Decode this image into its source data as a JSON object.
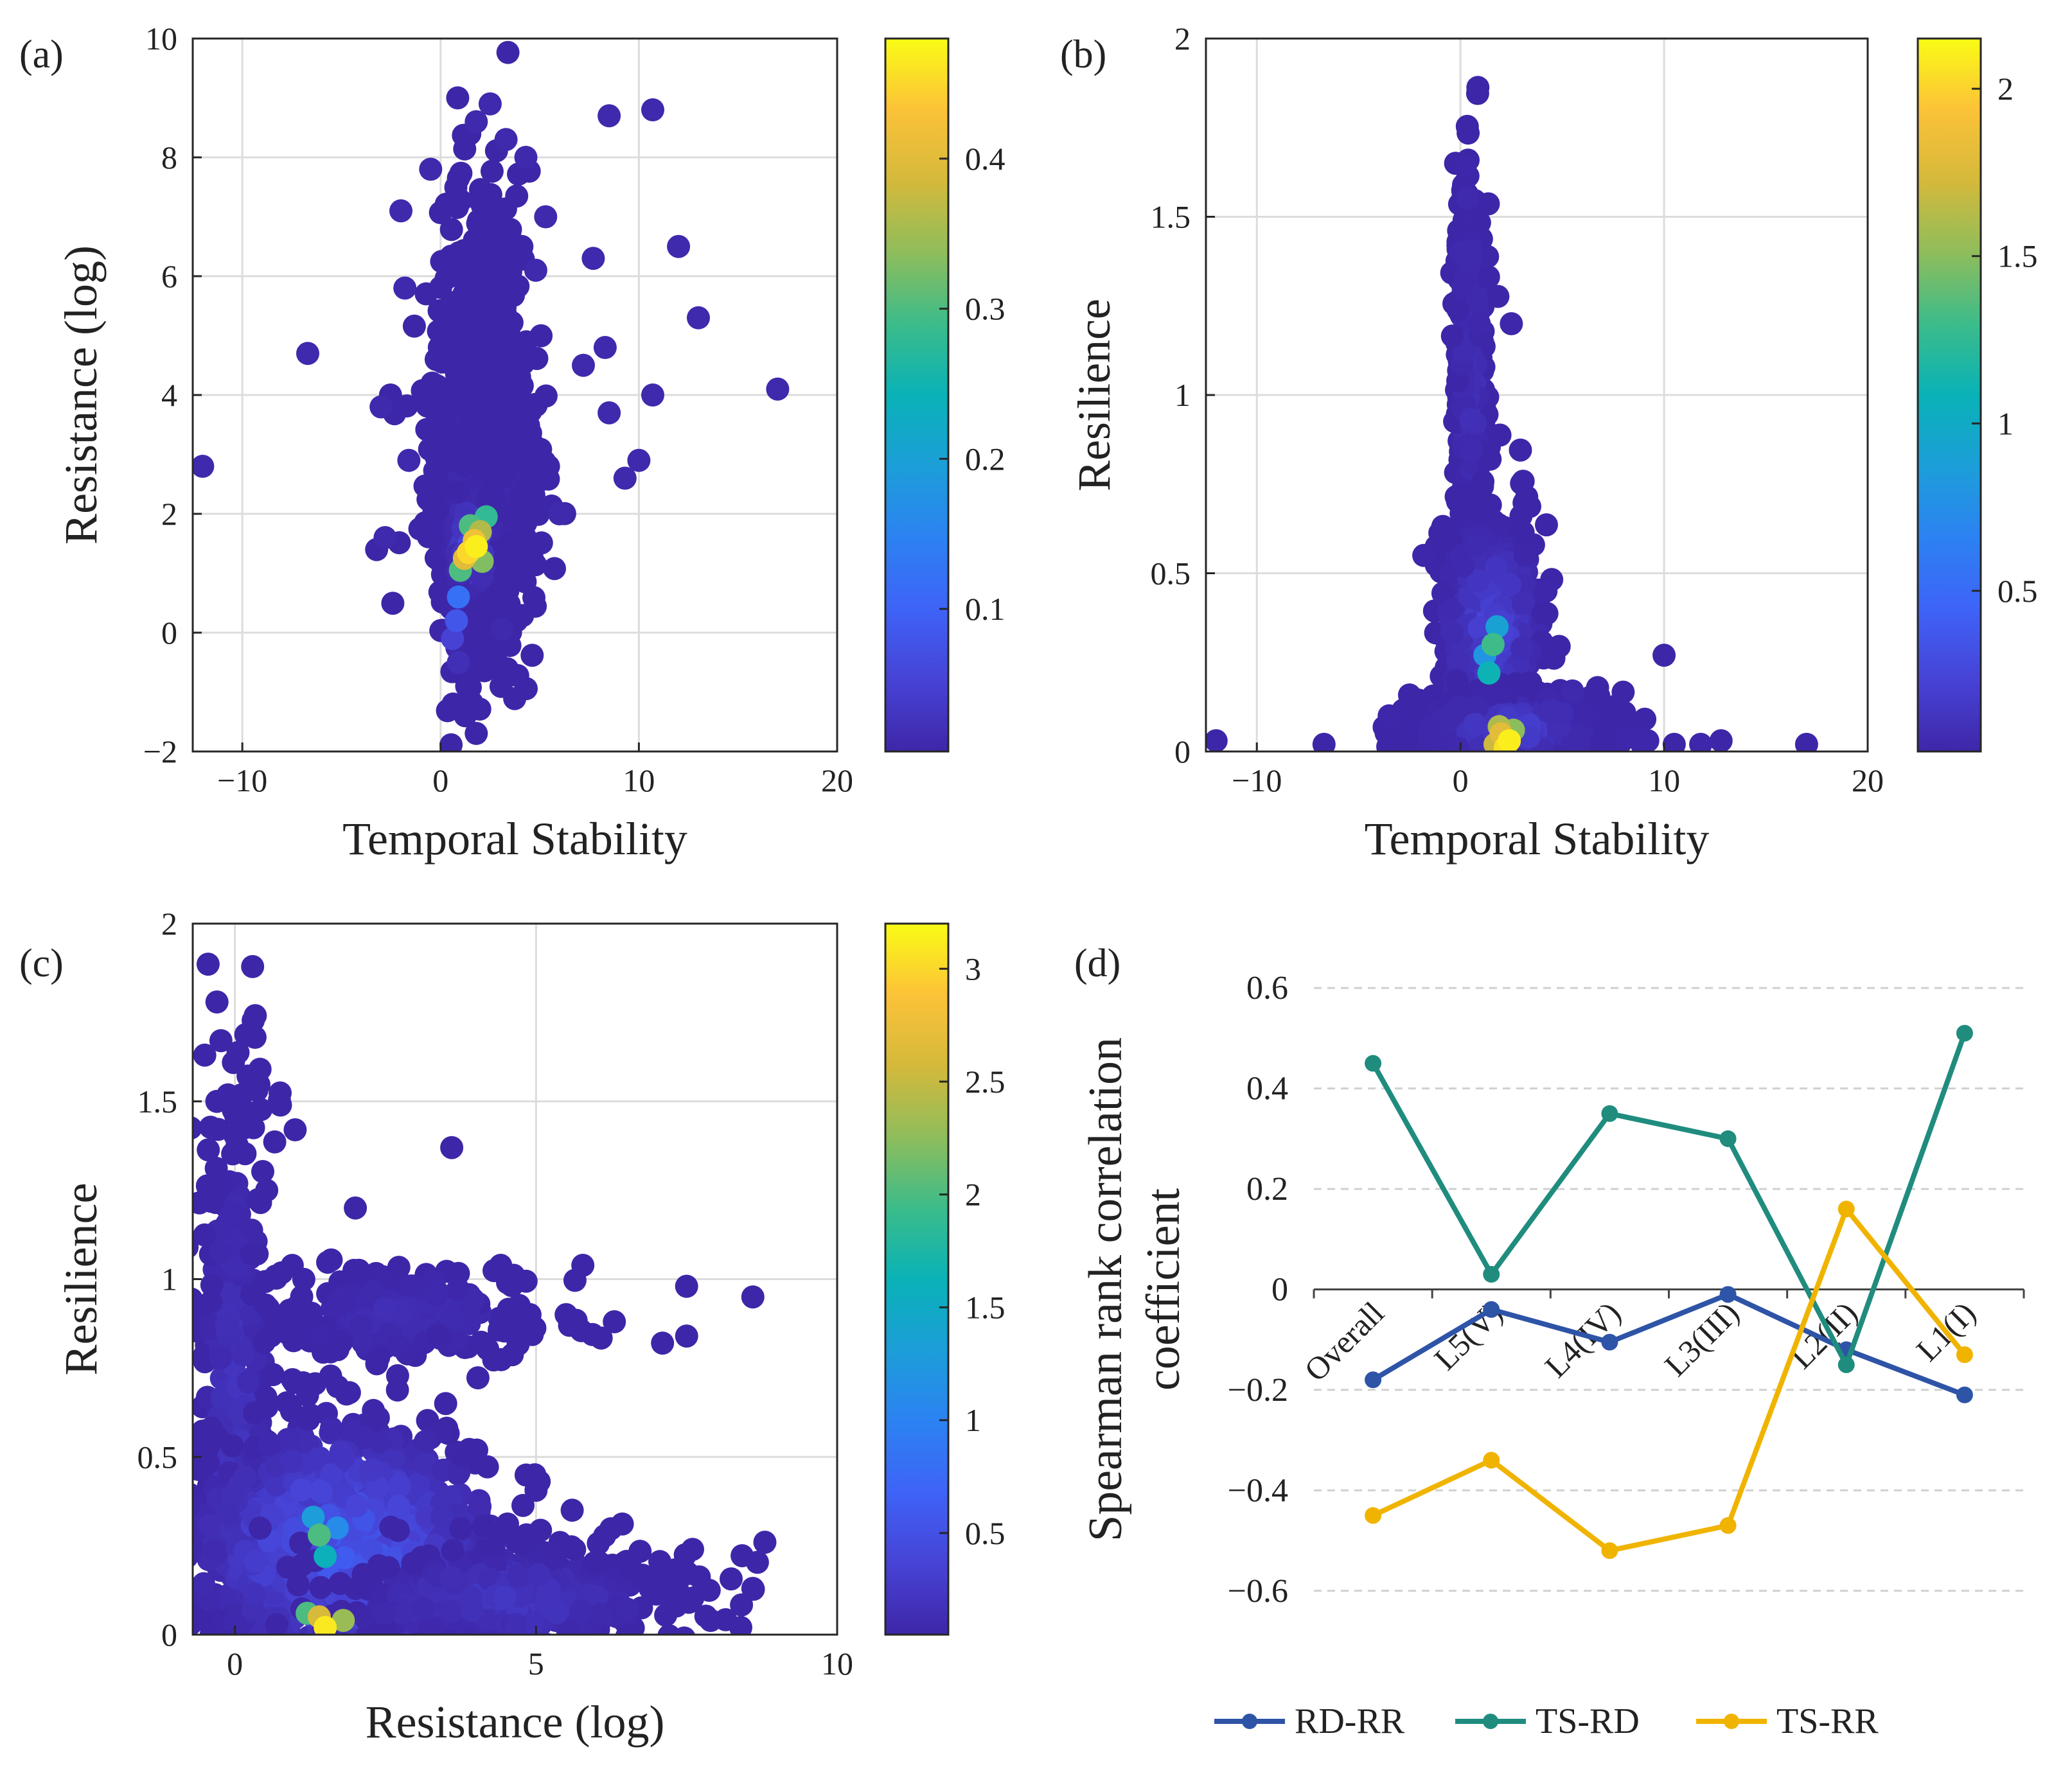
{
  "figure": {
    "panels": [
      "(a)",
      "(b)",
      "(c)",
      "(d)"
    ]
  },
  "colors": {
    "colormap": [
      "#3e26a8",
      "#4743d6",
      "#3e63f7",
      "#2c82f2",
      "#1c9ed8",
      "#09b2b7",
      "#3cbc8a",
      "#8fbd5b",
      "#d4b93b",
      "#fcc238",
      "#f9fb15"
    ],
    "grid": "#dcdcdc",
    "axis": "#262626",
    "RD-RR": "#2e54a7",
    "TS-RD": "#1f8c7e",
    "TS-RR": "#f0b400"
  },
  "chart_data": [
    {
      "panel": "(a)",
      "type": "scatter",
      "xlabel": "Temporal Stability",
      "ylabel": "Resistance (log)",
      "xlim": [
        -12.5,
        20
      ],
      "ylim": [
        -2,
        10
      ],
      "xticks": [
        "-10",
        "0",
        "10",
        "20"
      ],
      "xtick_values": [
        -10,
        0,
        10,
        20
      ],
      "yticks": [
        "-2",
        "0",
        "2",
        "4",
        "6",
        "8",
        "10"
      ],
      "ytick_values": [
        -2,
        0,
        2,
        4,
        6,
        8,
        10
      ],
      "grid": true,
      "colorbar": {
        "ticks": [
          "0.1",
          "0.2",
          "0.3",
          "0.4"
        ],
        "tick_values": [
          0.1,
          0.2,
          0.3,
          0.4
        ],
        "range": [
          0.005,
          0.48
        ]
      },
      "clusters": [
        {
          "x": 2.0,
          "y": 2.5,
          "sx": 1.3,
          "sy": 1.3,
          "n": 950,
          "dens": 0.03
        },
        {
          "x": 2.2,
          "y": 5.0,
          "sx": 0.9,
          "sy": 1.4,
          "n": 260,
          "dens": 0.01
        },
        {
          "x": 1.6,
          "y": 1.5,
          "sx": 0.5,
          "sy": 0.45,
          "n": 120,
          "dens": 0.15
        }
      ],
      "points": [
        [
          -12,
          2.8,
          0.01
        ],
        [
          -6.7,
          4.7,
          0.01
        ],
        [
          17,
          4.1,
          0.01
        ],
        [
          12,
          6.5,
          0.01
        ],
        [
          13,
          5.3,
          0.01
        ],
        [
          8.5,
          8.7,
          0.01
        ],
        [
          10.7,
          8.8,
          0.01
        ],
        [
          2.5,
          8.9,
          0.01
        ],
        [
          1.8,
          8.6,
          0.01
        ],
        [
          3.3,
          8.3,
          0.01
        ],
        [
          4.3,
          8.0,
          0.01
        ],
        [
          -0.5,
          7.8,
          0.01
        ],
        [
          -2,
          7.1,
          0.01
        ],
        [
          -1.8,
          5.8,
          0.01
        ],
        [
          -3,
          3.8,
          0.01
        ],
        [
          7.7,
          6.3,
          0.01
        ],
        [
          10.7,
          4.0,
          0.01
        ],
        [
          8.5,
          3.7,
          0.01
        ],
        [
          10,
          2.9,
          0.01
        ],
        [
          9.3,
          2.6,
          0.01
        ],
        [
          8.3,
          4.8,
          0.01
        ],
        [
          7.2,
          4.5,
          0.01
        ],
        [
          3.1,
          0.05,
          0.01
        ],
        [
          0.9,
          -0.5,
          0.02
        ],
        [
          0.6,
          -0.1,
          0.05
        ],
        [
          -2.8,
          1.6,
          0.01
        ],
        [
          -1.6,
          2.9,
          0.01
        ],
        [
          5.3,
          7.0,
          0.01
        ],
        [
          4.8,
          6.1,
          0.01
        ],
        [
          6,
          2.0,
          0.01
        ],
        [
          1.7,
          1.55,
          0.42
        ],
        [
          1.2,
          1.25,
          0.4
        ],
        [
          2.0,
          1.7,
          0.36
        ],
        [
          1.4,
          1.35,
          0.45
        ],
        [
          2.3,
          1.95,
          0.28
        ],
        [
          1.0,
          1.05,
          0.3
        ],
        [
          1.8,
          1.45,
          0.47
        ],
        [
          2.1,
          1.2,
          0.33
        ],
        [
          1.5,
          1.8,
          0.3
        ],
        [
          0.9,
          0.6,
          0.12
        ],
        [
          0.8,
          0.2,
          0.08
        ]
      ]
    },
    {
      "panel": "(b)",
      "type": "scatter",
      "xlabel": "Temporal Stability",
      "ylabel": "Resilience",
      "xlim": [
        -12.5,
        20
      ],
      "ylim": [
        0,
        2
      ],
      "xticks": [
        "-10",
        "0",
        "10",
        "20"
      ],
      "xtick_values": [
        -10,
        0,
        10,
        20
      ],
      "yticks": [
        "0",
        "0.5",
        "1",
        "1.5",
        "2"
      ],
      "ytick_values": [
        0,
        0.5,
        1,
        1.5,
        2
      ],
      "grid": true,
      "colorbar": {
        "ticks": [
          "0.5",
          "1",
          "1.5",
          "2"
        ],
        "tick_values": [
          0.5,
          1,
          1.5,
          2
        ],
        "range": [
          0.02,
          2.15
        ]
      },
      "clusters": [
        {
          "x": 0.5,
          "y": 1.05,
          "sx": 0.35,
          "sy": 0.28,
          "n": 420,
          "dens": 0.05
        },
        {
          "x": 1.5,
          "y": 0.35,
          "sx": 1.2,
          "sy": 0.15,
          "n": 650,
          "dens": 0.12
        },
        {
          "x": 2.5,
          "y": 0.06,
          "sx": 2.2,
          "sy": 0.05,
          "n": 650,
          "dens": 0.1
        }
      ],
      "points": [
        [
          -12,
          0.03,
          0.02
        ],
        [
          -6.7,
          0.02,
          0.02
        ],
        [
          17,
          0.02,
          0.02
        ],
        [
          12.8,
          0.03,
          0.02
        ],
        [
          10,
          0.27,
          0.02
        ],
        [
          10.5,
          0.02,
          0.02
        ],
        [
          11.8,
          0.02,
          0.03
        ],
        [
          9.2,
          0.03,
          0.03
        ],
        [
          8.2,
          0.04,
          0.03
        ],
        [
          4.2,
          0.45,
          0.03
        ],
        [
          -1.8,
          0.55,
          0.03
        ],
        [
          -3.5,
          0.1,
          0.03
        ],
        [
          2.5,
          1.2,
          0.03
        ],
        [
          0.2,
          1.64,
          0.03
        ],
        [
          0.35,
          1.55,
          0.05
        ],
        [
          0.0,
          1.4,
          0.05
        ],
        [
          6.2,
          0.1,
          0.03
        ],
        [
          5.5,
          0.17,
          0.05
        ],
        [
          1.6,
          0.3,
          1.3
        ],
        [
          1.4,
          0.22,
          1.1
        ],
        [
          1.8,
          0.35,
          0.9
        ],
        [
          2.0,
          0.05,
          1.8
        ],
        [
          2.4,
          0.03,
          2.1
        ],
        [
          1.9,
          0.07,
          1.6
        ],
        [
          2.6,
          0.06,
          1.5
        ],
        [
          1.7,
          0.02,
          1.7
        ],
        [
          1.2,
          0.27,
          0.8
        ],
        [
          2.2,
          0.01,
          2.05
        ]
      ]
    },
    {
      "panel": "(c)",
      "type": "scatter",
      "xlabel": "Resistance (log)",
      "ylabel": "Resilience",
      "xlim": [
        -0.7,
        10
      ],
      "ylim": [
        0,
        2
      ],
      "xticks": [
        "0",
        "5",
        "10"
      ],
      "xtick_values": [
        0,
        5,
        10
      ],
      "yticks": [
        "0",
        "0.5",
        "1",
        "1.5",
        "2"
      ],
      "ytick_values": [
        0,
        0.5,
        1,
        1.5,
        2
      ],
      "grid": true,
      "colorbar": {
        "ticks": [
          "0.5",
          "1",
          "1.5",
          "2",
          "2.5",
          "3"
        ],
        "tick_values": [
          0.5,
          1,
          1.5,
          2,
          2.5,
          3
        ],
        "range": [
          0.05,
          3.2
        ]
      },
      "clusters": [
        {
          "x": 0.0,
          "y": 0.6,
          "sx": 0.3,
          "sy": 0.45,
          "n": 450,
          "dens": 0.08
        },
        {
          "x": 2.8,
          "y": 0.9,
          "sx": 1.2,
          "sy": 0.08,
          "n": 220,
          "dens": 0.05
        },
        {
          "x": 1.8,
          "y": 0.25,
          "sx": 1.3,
          "sy": 0.18,
          "n": 950,
          "dens": 0.2
        },
        {
          "x": 4.5,
          "y": 0.1,
          "sx": 1.5,
          "sy": 0.08,
          "n": 350,
          "dens": 0.08
        }
      ],
      "points": [
        [
          -0.5,
          1.63,
          0.05
        ],
        [
          -0.3,
          1.5,
          0.05
        ],
        [
          0.2,
          1.47,
          0.05
        ],
        [
          1.0,
          1.42,
          0.05
        ],
        [
          3.6,
          1.37,
          0.05
        ],
        [
          7.5,
          0.98,
          0.05
        ],
        [
          8.6,
          0.95,
          0.05
        ],
        [
          7.1,
          0.82,
          0.05
        ],
        [
          7.5,
          0.84,
          0.05
        ],
        [
          6.3,
          0.88,
          0.05
        ],
        [
          5.5,
          0.9,
          0.05
        ],
        [
          3.8,
          0.5,
          0.05
        ],
        [
          3.5,
          0.65,
          0.05
        ],
        [
          8.8,
          0.26,
          0.05
        ],
        [
          8.6,
          0.13,
          0.05
        ],
        [
          7.9,
          0.04,
          0.05
        ],
        [
          8.4,
          0.02,
          0.05
        ],
        [
          7.6,
          0.24,
          0.05
        ],
        [
          5.6,
          0.35,
          0.05
        ],
        [
          4.6,
          1.0,
          0.05
        ],
        [
          4.9,
          0.9,
          0.05
        ],
        [
          2.0,
          1.2,
          0.05
        ],
        [
          1.4,
          0.28,
          2.0
        ],
        [
          1.5,
          0.22,
          1.6
        ],
        [
          1.3,
          0.33,
          1.3
        ],
        [
          1.4,
          0.05,
          2.6
        ],
        [
          1.5,
          0.02,
          3.1
        ],
        [
          1.8,
          0.04,
          2.3
        ],
        [
          1.2,
          0.06,
          2.0
        ],
        [
          1.7,
          0.3,
          1.1
        ]
      ]
    },
    {
      "panel": "(d)",
      "type": "line",
      "title": "",
      "ylabel": "Spearman rank correlation coefficient",
      "ylabel_lines": [
        "Spearman rank correlation",
        "coefficient"
      ],
      "categories": [
        "Overall",
        "L5(V)",
        "L4(IV)",
        "L3(III)",
        "L2(II)",
        "L1(I)"
      ],
      "ylim": [
        -0.7,
        0.7
      ],
      "yticks": [
        "0.6",
        "0.4",
        "0.2",
        "0",
        "-0.2",
        "-0.4",
        "-0.6"
      ],
      "ytick_values": [
        0.6,
        0.4,
        0.2,
        0,
        -0.2,
        -0.4,
        -0.6
      ],
      "series": [
        {
          "name": "RD-RR",
          "values": [
            -0.18,
            -0.04,
            -0.105,
            -0.01,
            -0.12,
            -0.21
          ]
        },
        {
          "name": "TS-RD",
          "values": [
            0.45,
            0.03,
            0.35,
            0.3,
            -0.15,
            0.51
          ]
        },
        {
          "name": "TS-RR",
          "values": [
            -0.45,
            -0.34,
            -0.52,
            -0.47,
            0.16,
            -0.13
          ]
        }
      ],
      "legend": "bottom"
    }
  ]
}
